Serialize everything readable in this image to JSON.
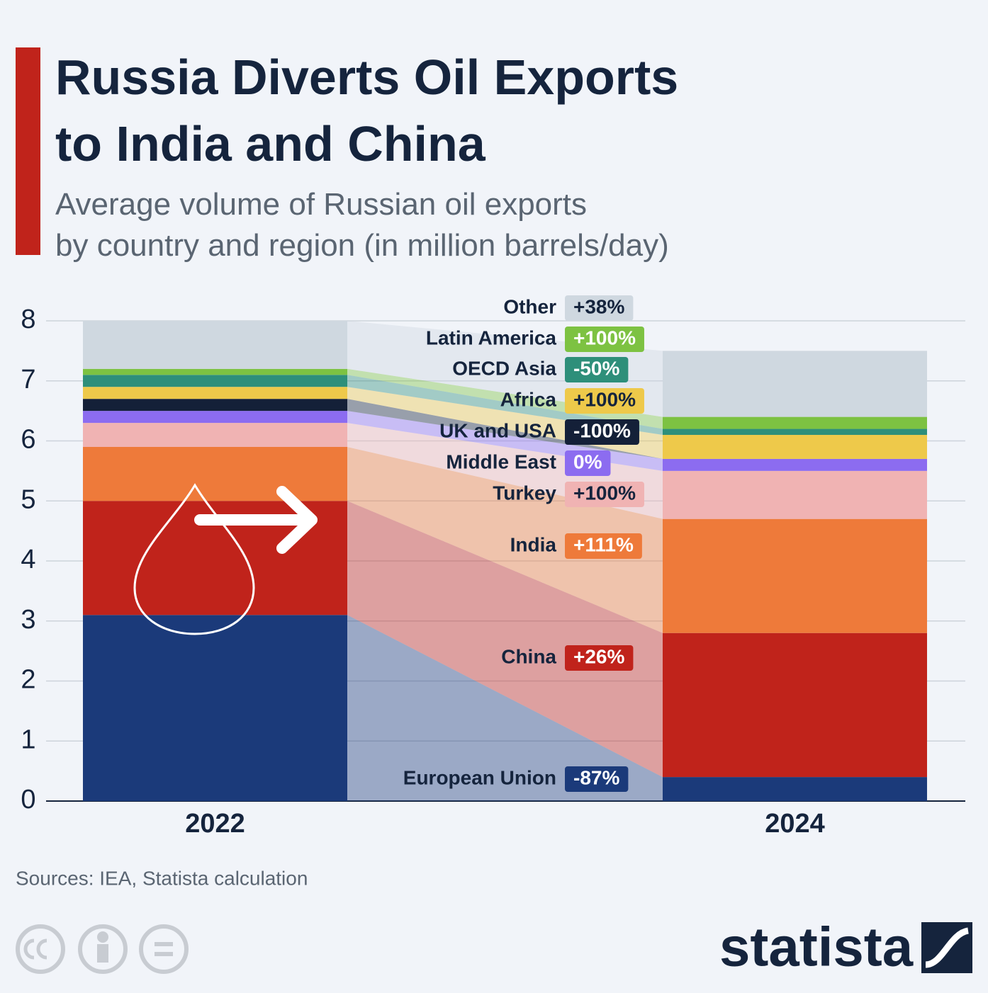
{
  "chart_data": {
    "type": "stacked-bar-flow",
    "title": "Russia Diverts Oil Exports\nto India and China",
    "subtitle": "Average volume of Russian oil exports\nby country and region (in million barrels/day)",
    "source": "Sources: IEA, Statista calculation",
    "brand": "statista",
    "categories": [
      "2022",
      "2024"
    ],
    "ylim": [
      0,
      8
    ],
    "yticks": [
      0,
      1,
      2,
      3,
      4,
      5,
      6,
      7,
      8
    ],
    "grid": true,
    "series": [
      {
        "name": "European Union",
        "color": "#1b3a7a",
        "values": [
          3.1,
          0.4
        ],
        "change": "-87%"
      },
      {
        "name": "China",
        "color": "#c0231b",
        "values": [
          1.9,
          2.4
        ],
        "change": "+26%"
      },
      {
        "name": "India",
        "color": "#ee7a3a",
        "values": [
          0.9,
          1.9
        ],
        "change": "+111%"
      },
      {
        "name": "Turkey",
        "color": "#f0b3b3",
        "values": [
          0.4,
          0.8
        ],
        "change": "+100%"
      },
      {
        "name": "Middle East",
        "color": "#8c6cf0",
        "values": [
          0.2,
          0.2
        ],
        "change": "0%"
      },
      {
        "name": "UK and USA",
        "color": "#142038",
        "values": [
          0.2,
          0
        ],
        "change": "-100%"
      },
      {
        "name": "Africa",
        "color": "#eec94a",
        "values": [
          0.2,
          0.4
        ],
        "change": "+100%"
      },
      {
        "name": "OECD Asia",
        "color": "#2e8f7a",
        "values": [
          0.2,
          0.1
        ],
        "change": "-50%"
      },
      {
        "name": "Latin America",
        "color": "#7dc242",
        "values": [
          0.1,
          0.2
        ],
        "change": "+100%"
      },
      {
        "name": "Other",
        "color": "#cfd8e0",
        "values": [
          0.8,
          1.1
        ],
        "change": "+38%"
      }
    ]
  }
}
